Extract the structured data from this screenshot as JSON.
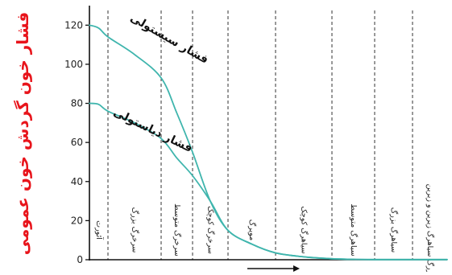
{
  "chart_data": {
    "type": "line",
    "title": "",
    "ylabel": "فشار خون گردش خون عمومی",
    "xlabel": "",
    "ylim": [
      0,
      130
    ],
    "yticks": [
      0,
      20,
      40,
      60,
      80,
      100,
      120
    ],
    "grid": false,
    "colors": {
      "curve": "#3fb5ad",
      "axis": "#111111",
      "divider": "#333333",
      "ylabel": "#e8141b"
    },
    "categories": [
      "آئورت",
      "سرخرگ بزرگ",
      "سرخرگ متوسط",
      "سرخرگ کوچک",
      "مویرگ",
      "سیاهرگ کوچک",
      "سیاهرگ متوسط",
      "سیاهرگ بزرگ",
      "بزرگ سیاهرگ زیرین و زبرین"
    ],
    "series": [
      {
        "name": "فشار سیستولی",
        "x": [
          0,
          0.5,
          1,
          1.5,
          2,
          2.5,
          3,
          3.5,
          4,
          4.5,
          5,
          5.5,
          6,
          6.5,
          7,
          7.5,
          8,
          8.5,
          9
        ],
        "values": [
          120,
          118.5,
          114,
          105,
          93,
          75,
          55,
          30,
          15,
          8,
          3.5,
          1.5,
          0.5,
          0.2,
          0.1,
          0.1,
          0.1,
          0.1,
          0.1
        ]
      },
      {
        "name": "فشار دیاستولی",
        "x": [
          0,
          0.5,
          1,
          1.5,
          2,
          2.5,
          3,
          3.5,
          4,
          4.5,
          5,
          5.5,
          6,
          6.5,
          7,
          7.5,
          8,
          8.5,
          9
        ],
        "values": [
          80,
          79.5,
          76,
          70,
          62,
          52,
          43,
          30,
          15,
          8,
          3.5,
          1.5,
          0.5,
          0.2,
          0.1,
          0.1,
          0.1,
          0.1,
          0.1
        ]
      }
    ]
  }
}
